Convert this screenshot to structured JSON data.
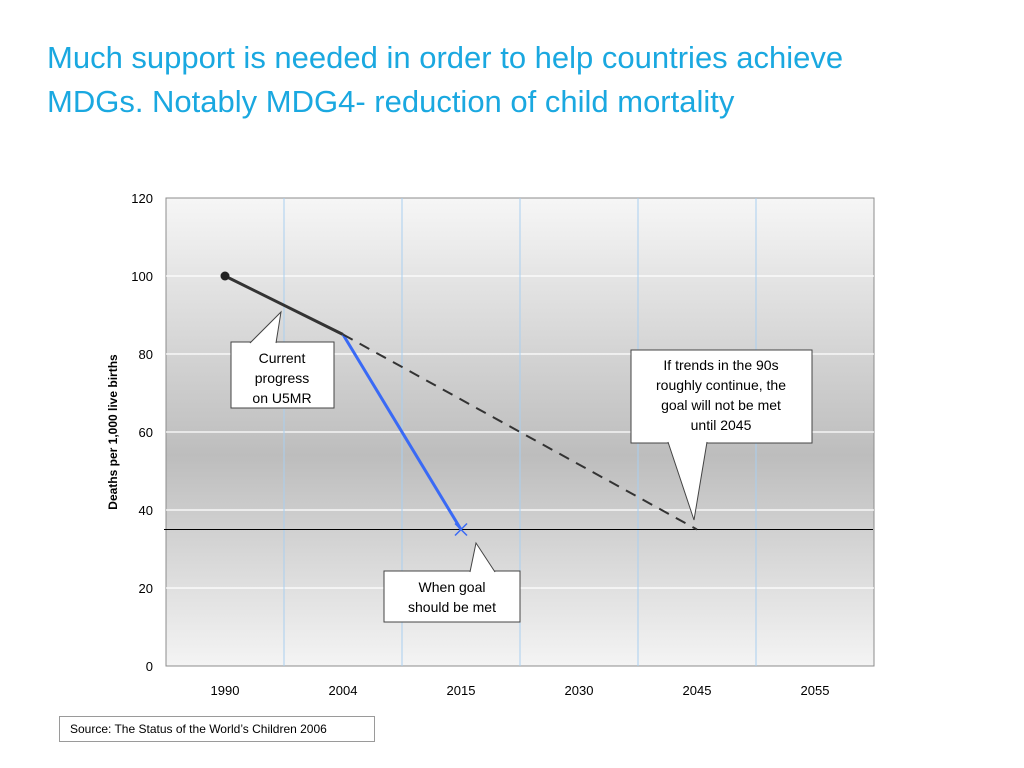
{
  "slide": {
    "title": "Much support is needed in order to help countries achieve MDGs. Notably MDG4- reduction of child mortality",
    "source": "Source: The Status of the World’s Children 2006"
  },
  "colors": {
    "title": "#1aa8e0",
    "current_progress_line": "#333333",
    "required_line": "#3a6af5",
    "trend_line": "#333333",
    "goal_line": "#000000",
    "vertical_grid": "#a9cff0",
    "horizontal_grid": "#ffffff"
  },
  "chart_data": {
    "type": "line",
    "ylabel": "Deaths per 1,000 live births",
    "ylim": [
      0,
      120
    ],
    "y_ticks": [
      0,
      20,
      40,
      60,
      80,
      100,
      120
    ],
    "x_ticks": [
      "1990",
      "2004",
      "2015",
      "2030",
      "2045",
      "2055"
    ],
    "grid": "on",
    "series": [
      {
        "style": "solid",
        "marker": "circle-start",
        "points": [
          {
            "x": "1990",
            "y": 100
          },
          {
            "x": "2004",
            "y": 85
          }
        ]
      },
      {
        "style": "solid",
        "marker": "x-end",
        "points": [
          {
            "x": "2004",
            "y": 85
          },
          {
            "x": "2015",
            "y": 35
          }
        ]
      },
      {
        "style": "dashed",
        "points": [
          {
            "x": "2004",
            "y": 85
          },
          {
            "x": "2045",
            "y": 35
          }
        ]
      }
    ],
    "goal_line_y": 35,
    "annotations": [
      {
        "id": "current",
        "lines": [
          "Current",
          "progress",
          "on U5MR"
        ]
      },
      {
        "id": "goal",
        "lines": [
          "When goal",
          "should be met"
        ]
      },
      {
        "id": "trend",
        "lines": [
          "If trends in the 90s",
          "roughly continue, the",
          "goal will not be met",
          "until 2045"
        ]
      }
    ]
  }
}
